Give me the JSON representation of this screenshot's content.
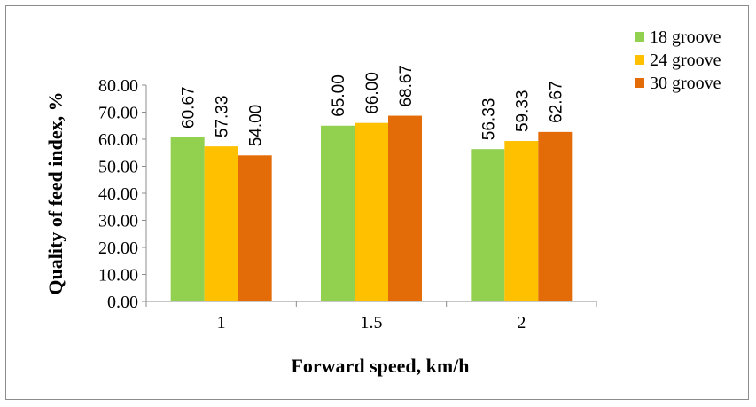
{
  "chart_data": {
    "type": "bar",
    "categories": [
      "1",
      "1.5",
      "2"
    ],
    "series": [
      {
        "name": "18 groove",
        "values": [
          60.67,
          65.0,
          56.33
        ],
        "color": "#92d050"
      },
      {
        "name": "24 groove",
        "values": [
          57.33,
          66.0,
          59.33
        ],
        "color": "#ffc000"
      },
      {
        "name": "30 groove",
        "values": [
          54.0,
          68.67,
          62.67
        ],
        "color": "#e36c09"
      }
    ],
    "xlabel": "Forward speed, km/h",
    "ylabel": "Quality of feed  index, %",
    "ylim": [
      0,
      80
    ],
    "yticks": [
      "0.00",
      "10.00",
      "20.00",
      "30.00",
      "40.00",
      "50.00",
      "60.00",
      "70.00",
      "80.00"
    ],
    "grid": false,
    "legend_position": "top-right",
    "data_labels": true
  }
}
